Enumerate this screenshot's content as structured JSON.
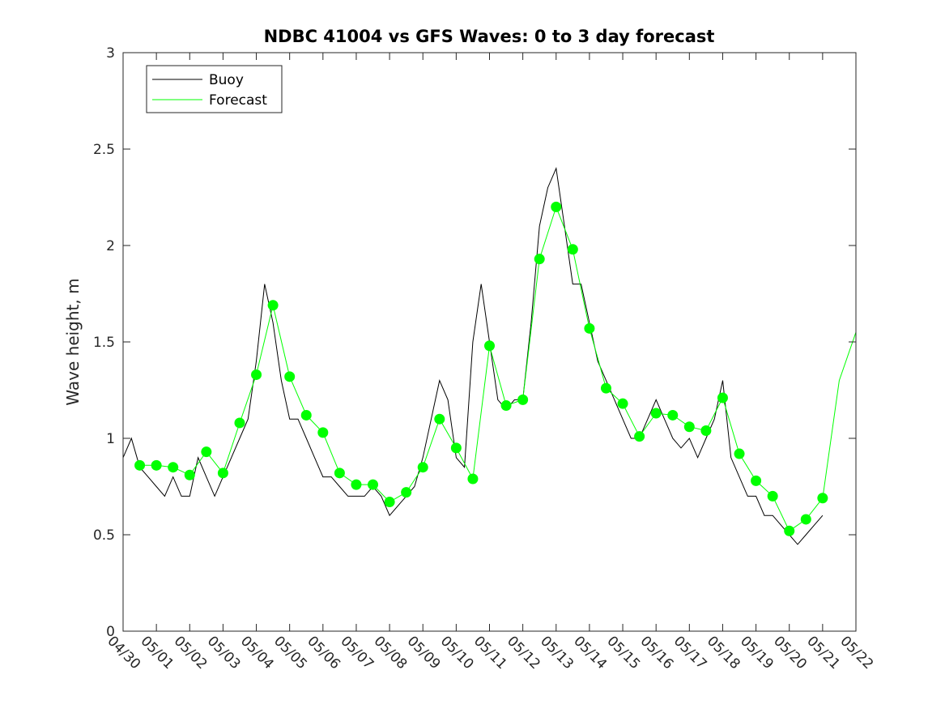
{
  "chart_data": {
    "type": "line",
    "title": "NDBC 41004 vs GFS Waves: 0 to 3 day forecast",
    "xlabel": "",
    "ylabel": "Wave height, m",
    "xlim": [
      0,
      22
    ],
    "ylim": [
      0,
      3
    ],
    "yticks": [
      0,
      0.5,
      1,
      1.5,
      2,
      2.5,
      3
    ],
    "ytick_labels": [
      "0",
      "0.5",
      "1",
      "1.5",
      "2",
      "2.5",
      "3"
    ],
    "xtick_labels": [
      "04/30",
      "05/01",
      "05/02",
      "05/03",
      "05/04",
      "05/05",
      "05/06",
      "05/07",
      "05/08",
      "05/09",
      "05/10",
      "05/11",
      "05/12",
      "05/13",
      "05/14",
      "05/15",
      "05/16",
      "05/17",
      "05/18",
      "05/19",
      "05/20",
      "05/21",
      "05/22"
    ],
    "x_units": "days since 04/30 00:00",
    "grid": false,
    "legend_position": "top-left",
    "colors": {
      "buoy": "#000000",
      "forecast": "#00ff00",
      "axes": "#262626"
    },
    "series": [
      {
        "name": "Buoy",
        "x": [
          0,
          0.25,
          0.5,
          0.75,
          1,
          1.25,
          1.5,
          1.75,
          2,
          2.25,
          2.5,
          2.75,
          3,
          3.25,
          3.5,
          3.75,
          4,
          4.25,
          4.5,
          4.75,
          5,
          5.25,
          5.5,
          5.75,
          6,
          6.25,
          6.5,
          6.75,
          7,
          7.25,
          7.5,
          7.75,
          8,
          8.25,
          8.5,
          8.75,
          9,
          9.25,
          9.5,
          9.75,
          10,
          10.25,
          10.5,
          10.75,
          11,
          11.25,
          11.5,
          11.75,
          12,
          12.25,
          12.5,
          12.75,
          13,
          13.25,
          13.5,
          13.75,
          14,
          14.25,
          14.5,
          14.75,
          15,
          15.25,
          15.5,
          15.75,
          16,
          16.25,
          16.5,
          16.75,
          17,
          17.25,
          17.5,
          17.75,
          18,
          18.25,
          18.5,
          18.75,
          19,
          19.25,
          19.5,
          19.75,
          20,
          20.25,
          20.5,
          20.75,
          21
        ],
        "y": [
          0.9,
          1.0,
          0.85,
          0.8,
          0.75,
          0.7,
          0.8,
          0.7,
          0.7,
          0.9,
          0.8,
          0.7,
          0.8,
          0.9,
          1.0,
          1.1,
          1.4,
          1.8,
          1.6,
          1.3,
          1.1,
          1.1,
          1.0,
          0.9,
          0.8,
          0.8,
          0.75,
          0.7,
          0.7,
          0.7,
          0.75,
          0.7,
          0.6,
          0.65,
          0.7,
          0.75,
          0.9,
          1.1,
          1.3,
          1.2,
          0.9,
          0.85,
          1.5,
          1.8,
          1.5,
          1.2,
          1.15,
          1.2,
          1.2,
          1.6,
          2.1,
          2.3,
          2.4,
          2.1,
          1.8,
          1.8,
          1.6,
          1.4,
          1.3,
          1.2,
          1.1,
          1.0,
          1.0,
          1.1,
          1.2,
          1.1,
          1.0,
          0.95,
          1.0,
          0.9,
          1.0,
          1.1,
          1.3,
          0.9,
          0.8,
          0.7,
          0.7,
          0.6,
          0.6,
          0.55,
          0.5,
          0.45,
          0.5,
          0.55,
          0.6
        ]
      },
      {
        "name": "Forecast",
        "x": [
          0.5,
          1,
          1.5,
          2,
          2.5,
          3,
          3.5,
          4,
          4.5,
          5,
          5.5,
          6,
          6.5,
          7,
          7.5,
          8,
          8.5,
          9,
          9.5,
          10,
          10.5,
          11,
          11.5,
          12,
          12.5,
          13,
          13.5,
          14,
          14.5,
          15,
          15.5,
          16,
          16.5,
          17,
          17.5,
          18,
          18.5,
          19,
          19.5,
          20,
          20.5,
          21,
          21.5,
          22
        ],
        "y": [
          0.86,
          0.86,
          0.85,
          0.81,
          0.93,
          0.82,
          1.08,
          1.33,
          1.69,
          1.32,
          1.12,
          1.03,
          0.82,
          0.76,
          0.76,
          0.67,
          0.72,
          0.85,
          1.1,
          0.95,
          0.79,
          1.48,
          1.17,
          1.2,
          1.93,
          2.2,
          1.98,
          1.57,
          1.26,
          1.18,
          1.01,
          1.13,
          1.12,
          1.06,
          1.04,
          1.21,
          0.92,
          0.78,
          0.7,
          0.52,
          0.58,
          0.69,
          1.3,
          1.55
        ]
      }
    ],
    "forecast_points": {
      "x": [
        0.5,
        1,
        1.5,
        2,
        2.5,
        3,
        3.5,
        4,
        4.5,
        5,
        5.5,
        6,
        6.5,
        7,
        7.5,
        8,
        8.5,
        9,
        9.5,
        10,
        10.5,
        11,
        11.5,
        12,
        12.5,
        13,
        13.5,
        14,
        14.5,
        15,
        15.5,
        16,
        16.5,
        17,
        17.5,
        18,
        18.5,
        19,
        19.5,
        20,
        20.5,
        21
      ],
      "y": [
        0.86,
        0.86,
        0.85,
        0.81,
        0.93,
        0.82,
        1.08,
        1.33,
        1.69,
        1.32,
        1.12,
        1.03,
        0.82,
        0.76,
        0.76,
        0.67,
        0.72,
        0.85,
        1.1,
        0.95,
        0.79,
        1.48,
        1.17,
        1.2,
        1.93,
        2.2,
        1.98,
        1.57,
        1.26,
        1.18,
        1.01,
        1.13,
        1.12,
        1.06,
        1.04,
        1.21,
        0.92,
        0.78,
        0.7,
        0.52,
        0.58,
        0.69
      ]
    }
  }
}
